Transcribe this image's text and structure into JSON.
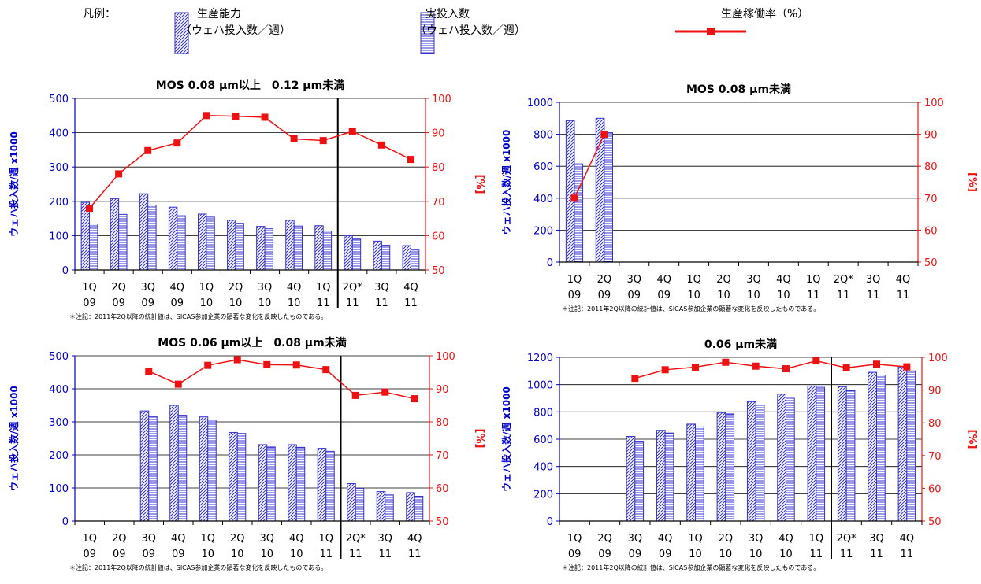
{
  "legend": {
    "title": "凡例：",
    "capacity_line1": "生産能力",
    "capacity_line2": "（ウェハ投入数／週）",
    "actual_line1": "実投入数",
    "actual_line2": "（ウェハ投入数／週）",
    "rate_label": "生産稼働率（%）"
  },
  "colors": {
    "capacity": "#3333cc",
    "actual": "#3333cc",
    "rate": "#ee1111",
    "left_axis": "#0000cc",
    "right_axis": "#ee1111"
  },
  "chart_data": [
    {
      "type": "bar",
      "title": "MOS 0.08 μm以上　0.12 μm未満",
      "ylabel": "ウェハ投入数/週 x1000",
      "y2label": "[%]",
      "note": "＊注記：2011年2Q以降の統計値は、SICAS参加企業の顕著な変化を反映したものである。",
      "categories": [
        [
          "1Q",
          "09"
        ],
        [
          "2Q",
          "09"
        ],
        [
          "3Q",
          "09"
        ],
        [
          "4Q",
          "09"
        ],
        [
          "1Q",
          "10"
        ],
        [
          "2Q",
          "10"
        ],
        [
          "3Q",
          "10"
        ],
        [
          "4Q",
          "10"
        ],
        [
          "1Q",
          "11"
        ],
        [
          "2Q*",
          "11"
        ],
        [
          "3Q",
          "11"
        ],
        [
          "4Q",
          "11"
        ]
      ],
      "ylim": [
        0,
        500
      ],
      "yticks": [
        "0",
        "100",
        "200",
        "300",
        "400",
        "500"
      ],
      "y2lim": [
        50,
        100
      ],
      "y2ticks": [
        "50",
        "60",
        "70",
        "80",
        "90",
        "100"
      ],
      "divider_after": 8,
      "series": [
        {
          "name": "生産能力",
          "kind": "bar",
          "pattern": "diag",
          "values": [
            197,
            208,
            222,
            183,
            163,
            145,
            127,
            145,
            129,
            100,
            84,
            71
          ]
        },
        {
          "name": "実投入数",
          "kind": "bar",
          "pattern": "horiz",
          "values": [
            134,
            162,
            189,
            158,
            154,
            136,
            120,
            128,
            113,
            90,
            72,
            58
          ]
        },
        {
          "name": "生産稼働率（%）",
          "kind": "line",
          "axis": "right",
          "values": [
            68,
            78,
            84.8,
            87,
            95,
            94.8,
            94.5,
            88.2,
            87.7,
            90.4,
            86.4,
            82.2
          ]
        }
      ]
    },
    {
      "type": "bar",
      "title": "MOS 0.08 μm未満",
      "ylabel": "ウェハ投入数/週 x1000",
      "y2label": "[%]",
      "note": "＊注記：2011年2Q以降の統計値は、SICAS参加企業の顕著な変化を反映したものである。",
      "categories": [
        [
          "1Q",
          "09"
        ],
        [
          "2Q",
          "09"
        ],
        [
          "3Q",
          "09"
        ],
        [
          "4Q",
          "09"
        ],
        [
          "1Q",
          "10"
        ],
        [
          "2Q",
          "10"
        ],
        [
          "3Q",
          "10"
        ],
        [
          "4Q",
          "10"
        ],
        [
          "1Q",
          "11"
        ],
        [
          "2Q*",
          "11"
        ],
        [
          "3Q",
          "11"
        ],
        [
          "4Q",
          "11"
        ]
      ],
      "ylim": [
        0,
        1000
      ],
      "yticks": [
        "0",
        "200",
        "400",
        "600",
        "800",
        "1000"
      ],
      "y2lim": [
        50,
        100
      ],
      "y2ticks": [
        "50",
        "60",
        "70",
        "80",
        "90",
        "100"
      ],
      "divider_after": null,
      "series": [
        {
          "name": "生産能力",
          "kind": "bar",
          "pattern": "diag",
          "values": [
            885,
            900,
            null,
            null,
            null,
            null,
            null,
            null,
            null,
            null,
            null,
            null
          ]
        },
        {
          "name": "実投入数",
          "kind": "bar",
          "pattern": "horiz",
          "values": [
            615,
            810,
            null,
            null,
            null,
            null,
            null,
            null,
            null,
            null,
            null,
            null
          ]
        },
        {
          "name": "生産稼働率（%）",
          "kind": "line",
          "axis": "right",
          "values": [
            70,
            90,
            null,
            null,
            null,
            null,
            null,
            null,
            null,
            null,
            null,
            null
          ]
        }
      ]
    },
    {
      "type": "bar",
      "title": "MOS 0.06 μm以上　0.08 μm未満",
      "ylabel": "ウェハ投入数/週 x1000",
      "y2label": "[%]",
      "note": "＊注記：2011年2Q以降の統計値は、SICAS参加企業の顕著な変化を反映したものである。",
      "categories": [
        [
          "1Q",
          "09"
        ],
        [
          "2Q",
          "09"
        ],
        [
          "3Q",
          "09"
        ],
        [
          "4Q",
          "09"
        ],
        [
          "1Q",
          "10"
        ],
        [
          "2Q",
          "10"
        ],
        [
          "3Q",
          "10"
        ],
        [
          "4Q",
          "10"
        ],
        [
          "1Q",
          "11"
        ],
        [
          "2Q*",
          "11"
        ],
        [
          "3Q",
          "11"
        ],
        [
          "4Q",
          "11"
        ]
      ],
      "ylim": [
        0,
        500
      ],
      "yticks": [
        "0",
        "100",
        "200",
        "300",
        "400",
        "500"
      ],
      "y2lim": [
        50,
        100
      ],
      "y2ticks": [
        "50",
        "60",
        "70",
        "80",
        "90",
        "100"
      ],
      "divider_after": 8,
      "series": [
        {
          "name": "生産能力",
          "kind": "bar",
          "pattern": "diag",
          "values": [
            null,
            null,
            333,
            350,
            315,
            268,
            231,
            231,
            220,
            113,
            89,
            86
          ]
        },
        {
          "name": "実投入数",
          "kind": "bar",
          "pattern": "horiz",
          "values": [
            null,
            null,
            317,
            320,
            305,
            265,
            224,
            223,
            211,
            99,
            79,
            75
          ]
        },
        {
          "name": "生産稼働率（%）",
          "kind": "line",
          "axis": "right",
          "values": [
            null,
            null,
            95.3,
            91.4,
            97.1,
            98.8,
            97.3,
            97.2,
            95.8,
            88,
            89,
            87
          ]
        }
      ]
    },
    {
      "type": "bar",
      "title": "0.06 μm未満",
      "ylabel": "ウェハ投入数/週 x1000",
      "y2label": "[%]",
      "note": "＊注記：2011年2Q以降の統計値は、SICAS参加企業の顕著な変化を反映したものである。",
      "categories": [
        [
          "1Q",
          "09"
        ],
        [
          "2Q",
          "09"
        ],
        [
          "3Q",
          "09"
        ],
        [
          "4Q",
          "09"
        ],
        [
          "1Q",
          "10"
        ],
        [
          "2Q",
          "10"
        ],
        [
          "3Q",
          "10"
        ],
        [
          "4Q",
          "10"
        ],
        [
          "1Q",
          "11"
        ],
        [
          "2Q*",
          "11"
        ],
        [
          "3Q",
          "11"
        ],
        [
          "4Q",
          "11"
        ]
      ],
      "ylim": [
        0,
        1200
      ],
      "yticks": [
        "0",
        "200",
        "400",
        "600",
        "800",
        "1000",
        "1200"
      ],
      "y2lim": [
        50,
        100
      ],
      "y2ticks": [
        "50",
        "60",
        "70",
        "80",
        "90",
        "100"
      ],
      "divider_after": 8,
      "series": [
        {
          "name": "生産能力",
          "kind": "bar",
          "pattern": "diag",
          "values": [
            null,
            null,
            620,
            665,
            710,
            795,
            875,
            930,
            990,
            985,
            1090,
            1130
          ]
        },
        {
          "name": "実投入数",
          "kind": "bar",
          "pattern": "horiz",
          "values": [
            null,
            null,
            585,
            645,
            690,
            785,
            850,
            900,
            980,
            955,
            1070,
            1100
          ]
        },
        {
          "name": "生産稼働率（%）",
          "kind": "line",
          "axis": "right",
          "values": [
            null,
            null,
            93.6,
            96.2,
            97,
            98.5,
            97.3,
            96.5,
            98.9,
            96.8,
            97.9,
            97.1
          ]
        }
      ]
    }
  ]
}
